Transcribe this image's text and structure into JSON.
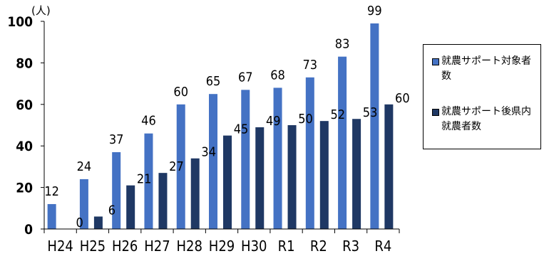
{
  "chart_data": {
    "type": "bar",
    "unit_label": "(人)",
    "categories": [
      "H24",
      "H25",
      "H26",
      "H27",
      "H28",
      "H29",
      "H30",
      "R1",
      "R2",
      "R3",
      "R4"
    ],
    "series": [
      {
        "name": "就農サポート対象者数",
        "color": "#4472C4",
        "values": [
          12,
          24,
          37,
          46,
          60,
          65,
          67,
          68,
          73,
          83,
          99
        ]
      },
      {
        "name": "就農サポート後県内就農者数",
        "color": "#1F3864",
        "values": [
          0,
          6,
          21,
          27,
          34,
          45,
          49,
          50,
          52,
          53,
          60
        ]
      }
    ],
    "ylim": [
      0,
      100
    ],
    "yticks": [
      0,
      20,
      40,
      60,
      80,
      100
    ],
    "grid": false,
    "legend_position": "right"
  }
}
